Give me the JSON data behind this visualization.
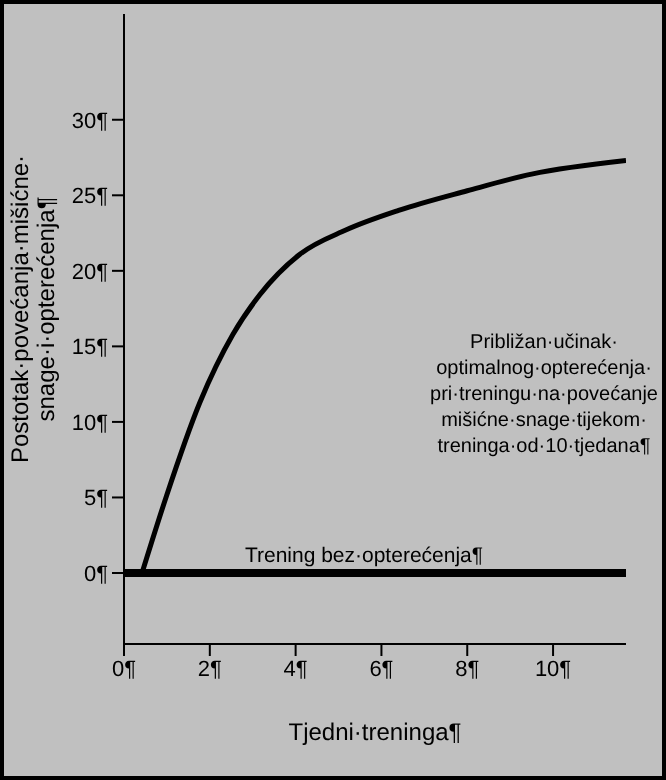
{
  "chart_data": {
    "type": "line",
    "xlabel": "Tjedni·treninga¶",
    "ylabel": "Postotak·povećanja·mišićne·\nsnage·i·opterećenja¶",
    "xlim": [
      0,
      11.7
    ],
    "ylim": [
      -4.7,
      37
    ],
    "xticks": [
      {
        "value": 0,
        "label": "0¶"
      },
      {
        "value": 2,
        "label": "2¶"
      },
      {
        "value": 4,
        "label": "4¶"
      },
      {
        "value": 6,
        "label": "6¶"
      },
      {
        "value": 8,
        "label": "8¶"
      },
      {
        "value": 10,
        "label": "10¶"
      }
    ],
    "yticks": [
      {
        "value": 0,
        "label": "0¶"
      },
      {
        "value": 5,
        "label": "5¶"
      },
      {
        "value": 10,
        "label": "10¶"
      },
      {
        "value": 15,
        "label": "15¶"
      },
      {
        "value": 20,
        "label": "20¶"
      },
      {
        "value": 25,
        "label": "25¶"
      },
      {
        "value": 30,
        "label": "30¶"
      }
    ],
    "series": [
      {
        "color": "#000000",
        "x": [
          0.42,
          0.99,
          1.77,
          2.54,
          3.16,
          4.1,
          5.17,
          6.4,
          8,
          9.5,
          11.7
        ],
        "values": [
          0,
          5.1,
          11.3,
          15.8,
          18.4,
          21.1,
          22.7,
          24.0,
          25.3,
          26.4,
          27.3
        ]
      },
      {
        "color": "#000000",
        "x": [
          0,
          11.7
        ],
        "values": [
          0,
          0
        ]
      }
    ],
    "annotations": [
      "Približan·učinak·\noptimalnog·opterećenja·\npri·treningu·na·povećanje\nmišićne·snage·tijekom·\ntreninga·od·10·tjedana¶",
      "Trening bez·opterećenja¶"
    ],
    "grid": false,
    "marker": "none",
    "line_style": "solid"
  }
}
